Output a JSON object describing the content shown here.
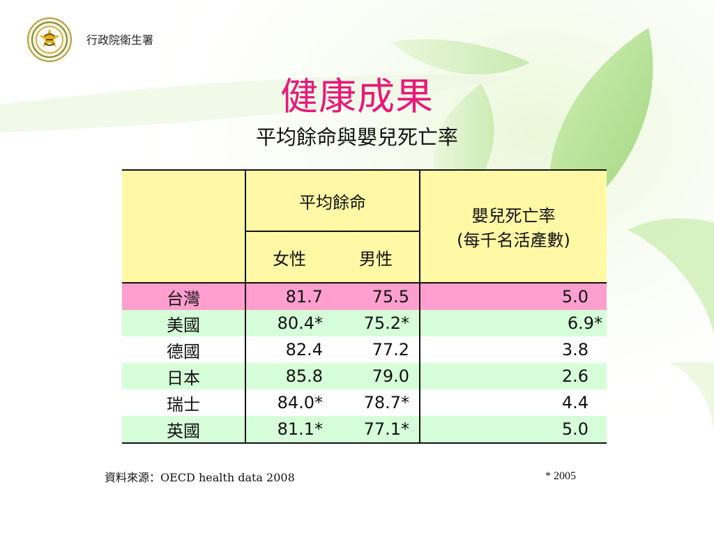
{
  "header": {
    "org_name": "行政院衛生署",
    "logo_icon": "department-of-health-emblem-icon"
  },
  "title": "健康成果",
  "subtitle": "平均餘命與嬰兒死亡率",
  "table": {
    "header_life_expectancy": "平均餘命",
    "header_female": "女性",
    "header_male": "男性",
    "header_infant_mortality_line1": "嬰兒死亡率",
    "header_infant_mortality_line2": "(每千名活產數)",
    "rows": [
      {
        "country": "台灣",
        "female": "81.7",
        "male": "75.5",
        "infant": "5.0"
      },
      {
        "country": "美國",
        "female": "80.4*",
        "male": "75.2*",
        "infant": "6.9*"
      },
      {
        "country": "德國",
        "female": "82.4",
        "male": "77.2",
        "infant": "3.8"
      },
      {
        "country": "日本",
        "female": "85.8",
        "male": "79.0",
        "infant": "2.6"
      },
      {
        "country": "瑞士",
        "female": "84.0*",
        "male": "78.7*",
        "infant": "4.4"
      },
      {
        "country": "英國",
        "female": "81.1*",
        "male": "77.1*",
        "infant": "5.0"
      }
    ]
  },
  "footer": {
    "source": "資料來源：OECD health data 2008",
    "note": "* 2005"
  },
  "colors": {
    "title": "#e8197a",
    "header_bg": "#fff9a6",
    "taiwan_row_bg": "#ff9fcf",
    "green_row_bg": "#d6ffd9"
  }
}
